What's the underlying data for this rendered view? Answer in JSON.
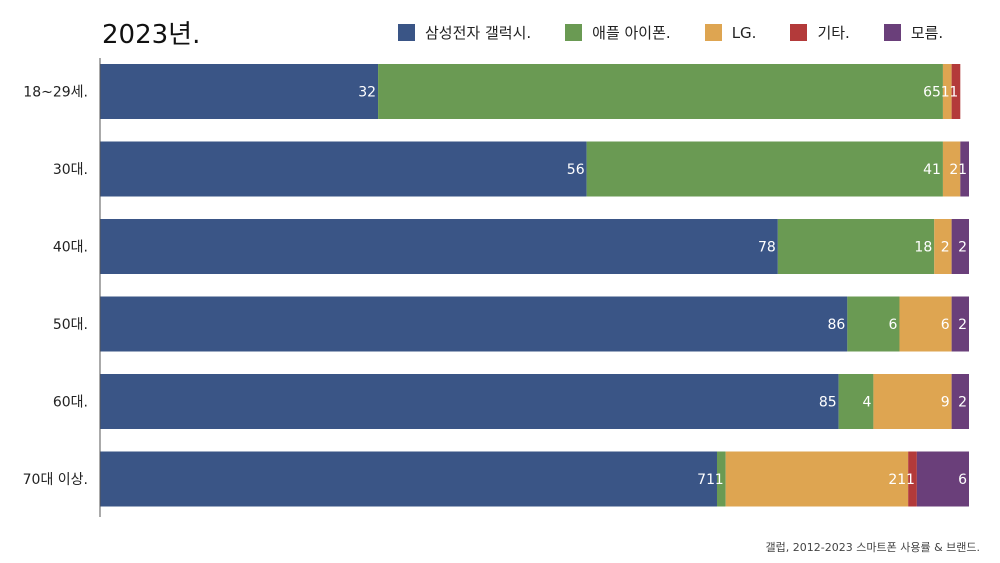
{
  "chart_data": {
    "type": "bar",
    "orientation": "horizontal",
    "stacked": true,
    "title": "2023년.",
    "categories": [
      "18~29세.",
      "30대.",
      "40대.",
      "50대.",
      "60대.",
      "70대 이상."
    ],
    "series": [
      {
        "name": "삼성전자 갤럭시.",
        "color": "#3a5586",
        "values": [
          32,
          56,
          78,
          86,
          85,
          71
        ]
      },
      {
        "name": "애플 아이폰.",
        "color": "#6a9a53",
        "values": [
          65,
          41,
          18,
          6,
          4,
          1
        ]
      },
      {
        "name": "LG.",
        "color": "#dea551",
        "values": [
          1,
          2,
          2,
          6,
          9,
          21
        ]
      },
      {
        "name": "기타.",
        "color": "#b33a3a",
        "values": [
          1,
          0,
          0,
          0,
          0,
          1
        ]
      },
      {
        "name": "모름.",
        "color": "#6a3f7a",
        "values": [
          0,
          1,
          2,
          2,
          2,
          6
        ]
      }
    ],
    "xlim": [
      0,
      100
    ],
    "grid": false,
    "legend_position": "top"
  },
  "source": "갤럽, 2012-2023 스마트폰 사용률 & 브랜드."
}
